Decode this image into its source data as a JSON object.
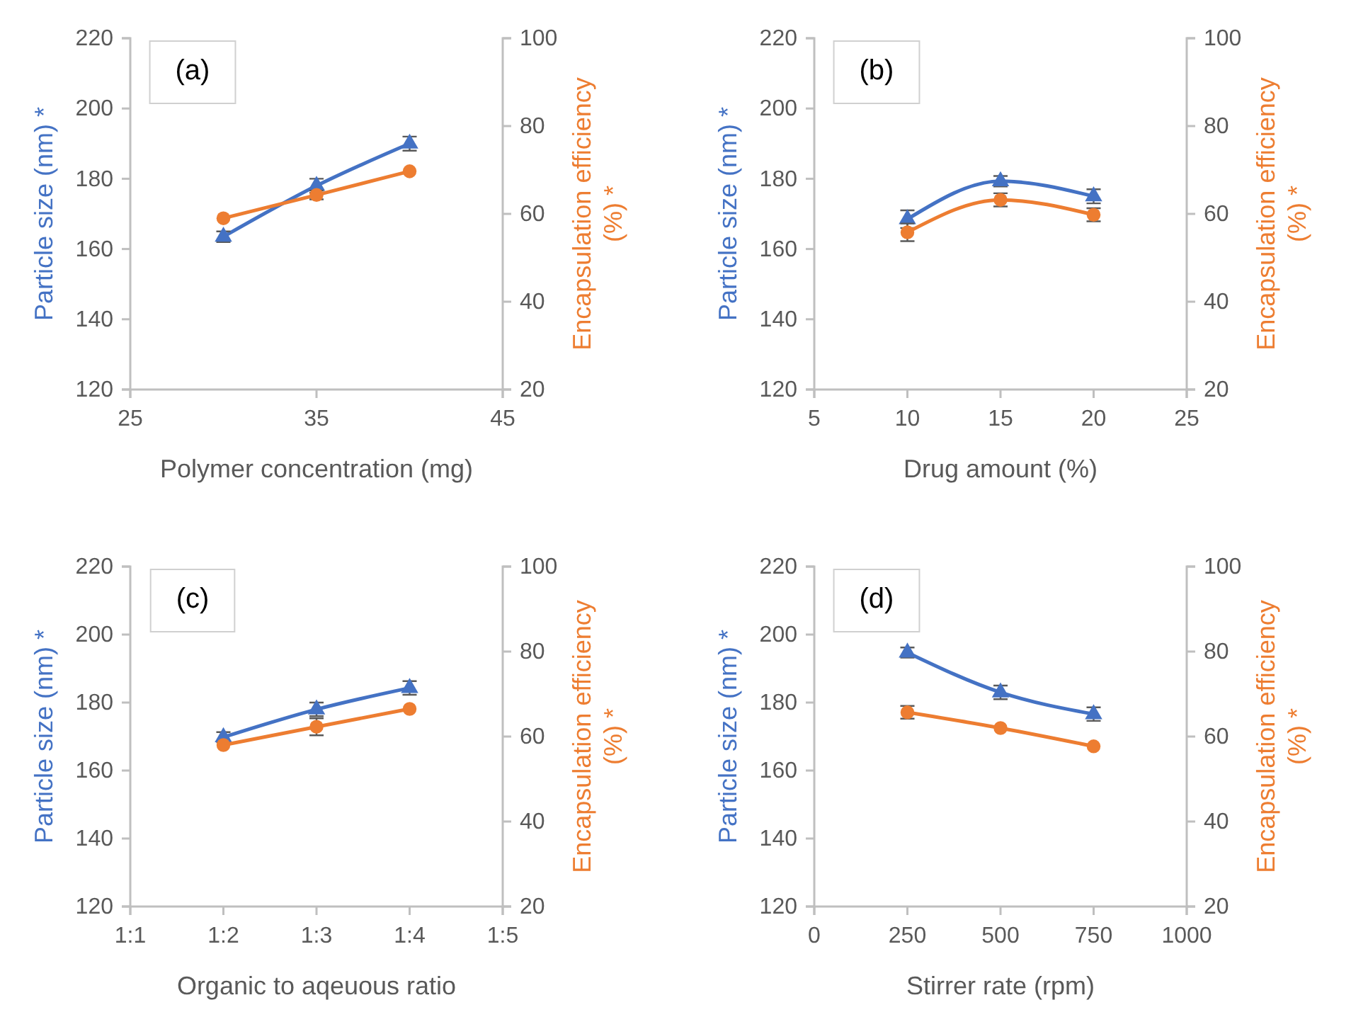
{
  "chart_data": [
    {
      "type": "line",
      "annotations": [
        "(a)"
      ],
      "xlabel": "Polymer concentration (mg)",
      "ylabel": "Particle size (nm) *",
      "y2label": "Encapsulation efficiency (%) *",
      "x": [
        30,
        35,
        40
      ],
      "xlim": [
        25,
        45
      ],
      "xticks": [
        25,
        35,
        45
      ],
      "ylim": [
        120,
        220
      ],
      "yticks": [
        120,
        140,
        160,
        180,
        200,
        220
      ],
      "y2lim": [
        20,
        100
      ],
      "y2ticks": [
        20,
        40,
        60,
        80,
        100
      ],
      "grid": false,
      "series": [
        {
          "color": "#4472c4",
          "marker": "triangle",
          "values": [
            163.5,
            178,
            190
          ],
          "errors": [
            1.5,
            2,
            2
          ]
        },
        {
          "color": "#ed7d31",
          "marker": "circle",
          "axis": "y2",
          "values": [
            59,
            64.3,
            69.7
          ],
          "errors": [
            null,
            1,
            null
          ]
        }
      ]
    },
    {
      "type": "line",
      "annotations": [
        "(b)"
      ],
      "xlabel": "Drug amount (%)",
      "ylabel": "Particle size (nm) *",
      "y2label": "Encapsulation efficiency (%) *",
      "x": [
        10,
        15,
        20
      ],
      "xlim": [
        5,
        25
      ],
      "xticks": [
        5,
        10,
        15,
        20,
        25
      ],
      "ylim": [
        120,
        220
      ],
      "yticks": [
        120,
        140,
        160,
        180,
        200,
        220
      ],
      "y2lim": [
        20,
        100
      ],
      "y2ticks": [
        20,
        40,
        60,
        80,
        100
      ],
      "grid": false,
      "series": [
        {
          "color": "#4472c4",
          "marker": "triangle",
          "values": [
            168.5,
            179.3,
            175
          ],
          "errors": [
            2.5,
            1.5,
            2
          ]
        },
        {
          "color": "#ed7d31",
          "marker": "circle",
          "axis": "y2",
          "values": [
            55.8,
            63.2,
            59.8
          ],
          "errors": [
            2,
            1.5,
            1.5
          ]
        }
      ]
    },
    {
      "type": "line",
      "annotations": [
        "(c)"
      ],
      "xlabel": "Organic to aqeuous ratio",
      "ylabel": "Particle size (nm) *",
      "y2label": "Encapsulation efficiency (%) *",
      "categories": [
        "1:1",
        "1:2",
        "1:3",
        "1:4",
        "1:5"
      ],
      "ylim": [
        120,
        220
      ],
      "yticks": [
        120,
        140,
        160,
        180,
        200,
        220
      ],
      "y2lim": [
        20,
        100
      ],
      "y2ticks": [
        20,
        40,
        60,
        80,
        100
      ],
      "grid": false,
      "series": [
        {
          "color": "#4472c4",
          "marker": "triangle",
          "values": [
            null,
            169.8,
            178,
            184.3,
            null
          ],
          "errors": [
            null,
            1.5,
            2,
            2,
            null
          ]
        },
        {
          "color": "#ed7d31",
          "marker": "circle",
          "axis": "y2",
          "values": [
            null,
            58,
            62.3,
            66.5,
            null
          ],
          "errors": [
            null,
            null,
            2,
            null,
            null
          ]
        }
      ]
    },
    {
      "type": "line",
      "annotations": [
        "(d)"
      ],
      "xlabel": "Stirrer rate (rpm)",
      "ylabel": "Particle size (nm) *",
      "y2label": "Encapsulation efficiency (%) *",
      "x": [
        250,
        500,
        750
      ],
      "xlim": [
        0,
        1000
      ],
      "xticks": [
        0,
        250,
        500,
        750,
        1000
      ],
      "ylim": [
        120,
        220
      ],
      "yticks": [
        120,
        140,
        160,
        180,
        200,
        220
      ],
      "y2lim": [
        20,
        100
      ],
      "y2ticks": [
        20,
        40,
        60,
        80,
        100
      ],
      "grid": false,
      "series": [
        {
          "color": "#4472c4",
          "marker": "triangle",
          "values": [
            194.7,
            183,
            176.6
          ],
          "errors": [
            1.5,
            2,
            2
          ]
        },
        {
          "color": "#ed7d31",
          "marker": "circle",
          "axis": "y2",
          "values": [
            65.7,
            62,
            57.7
          ],
          "errors": [
            1.5,
            null,
            null
          ]
        }
      ]
    }
  ]
}
